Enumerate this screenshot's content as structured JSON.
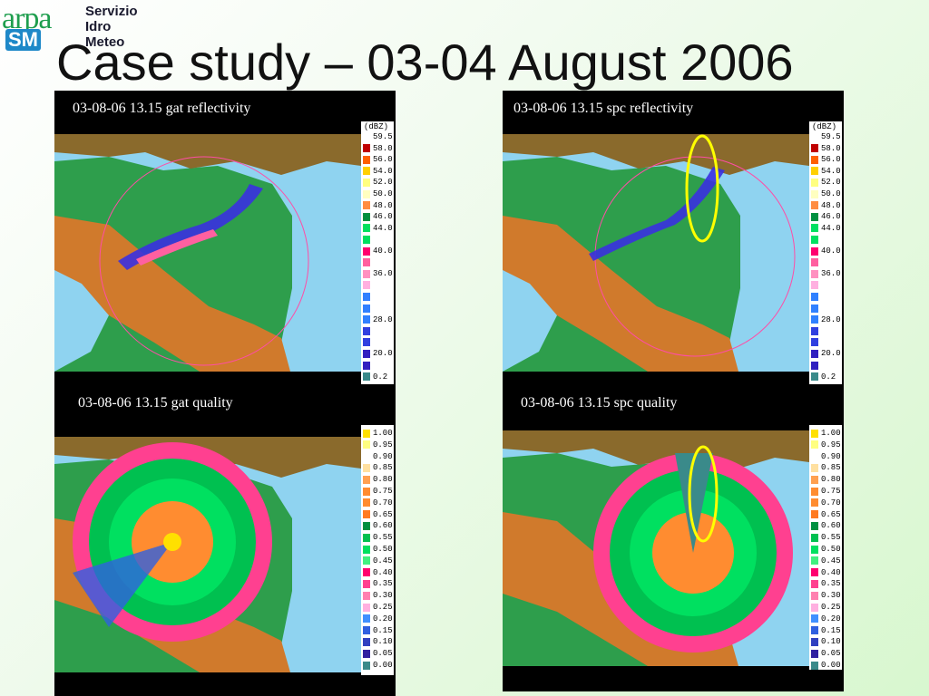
{
  "logo": {
    "brand": "arpa",
    "sub": "SM",
    "service_lines": [
      "Servizio",
      "Idro",
      "Meteo"
    ]
  },
  "slide_title": "Case study – 03-04 August 2006",
  "colors": {
    "sea": "#8fd3f0",
    "plain": "#2e9e4c",
    "plain_dark": "#17803a",
    "mountain": "#d07a2c",
    "hills": "#8a6a2c",
    "alps_high": "#f0ead6",
    "radar_ring": "#ff4da6",
    "highlight": "#ffff00"
  },
  "panels": {
    "gat_reflectivity": {
      "title": "03-08-06 13.15 gat reflectivity"
    },
    "spc_reflectivity": {
      "title": "03-08-06 13.15 spc reflectivity"
    },
    "gat_quality": {
      "title": "03-08-06 13.15 gat quality"
    },
    "spc_quality": {
      "title": "03-08-06 13.15 spc quality"
    }
  },
  "reflectivity_legend": {
    "unit": "(dBZ)",
    "entries": [
      {
        "label": "59.5",
        "color": "#ffffff"
      },
      {
        "label": "58.0",
        "color": "#c00000"
      },
      {
        "label": "56.0",
        "color": "#ff6000"
      },
      {
        "label": "54.0",
        "color": "#ffd000"
      },
      {
        "label": "52.0",
        "color": "#ffff80"
      },
      {
        "label": "50.0",
        "color": "#ffffc0"
      },
      {
        "label": "48.0",
        "color": "#ff8c40"
      },
      {
        "label": "46.0",
        "color": "#009040"
      },
      {
        "label": "44.0",
        "color": "#00e060"
      },
      {
        "label": "",
        "color": "#00e060"
      },
      {
        "label": "40.0",
        "color": "#ff0070"
      },
      {
        "label": "",
        "color": "#ff60a0"
      },
      {
        "label": "36.0",
        "color": "#ff90c0"
      },
      {
        "label": "",
        "color": "#ffb0e0"
      },
      {
        "label": "",
        "color": "#3080ff"
      },
      {
        "label": "",
        "color": "#3080ff"
      },
      {
        "label": "28.0",
        "color": "#3080ff"
      },
      {
        "label": "",
        "color": "#3040e0"
      },
      {
        "label": "",
        "color": "#3040e0"
      },
      {
        "label": "20.0",
        "color": "#3020c0"
      },
      {
        "label": "",
        "color": "#3020c0"
      },
      {
        "label": "0.2",
        "color": "#3a8a8a"
      }
    ]
  },
  "quality_legend": {
    "entries": [
      {
        "label": "1.00",
        "color": "#ffe000"
      },
      {
        "label": "0.95",
        "color": "#ffff80"
      },
      {
        "label": "0.90",
        "color": "#ffffff"
      },
      {
        "label": "0.85",
        "color": "#ffe0a0"
      },
      {
        "label": "0.80",
        "color": "#ffa050"
      },
      {
        "label": "0.75",
        "color": "#ff8c30"
      },
      {
        "label": "0.70",
        "color": "#ff8c30"
      },
      {
        "label": "0.65",
        "color": "#ff7a20"
      },
      {
        "label": "0.60",
        "color": "#009040"
      },
      {
        "label": "0.55",
        "color": "#00c050"
      },
      {
        "label": "0.50",
        "color": "#00e060"
      },
      {
        "label": "0.45",
        "color": "#40f080"
      },
      {
        "label": "0.40",
        "color": "#ff0070"
      },
      {
        "label": "0.35",
        "color": "#ff4090"
      },
      {
        "label": "0.30",
        "color": "#ff80b0"
      },
      {
        "label": "0.25",
        "color": "#ffb0e0"
      },
      {
        "label": "0.20",
        "color": "#4090ff"
      },
      {
        "label": "0.15",
        "color": "#3060e0"
      },
      {
        "label": "0.10",
        "color": "#3040c0"
      },
      {
        "label": "0.05",
        "color": "#3020a0"
      },
      {
        "label": "0.00",
        "color": "#3a8a8a"
      }
    ]
  }
}
